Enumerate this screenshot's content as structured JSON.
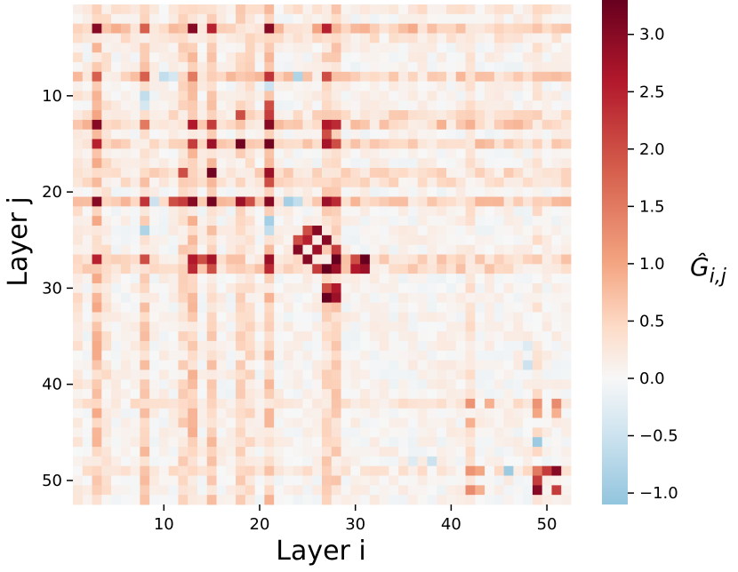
{
  "chart_data": {
    "type": "heatmap",
    "title": "",
    "xlabel": "Layer i",
    "ylabel": "Layer j",
    "colorbar_label": "Ĝ_{i,j}",
    "n": 52,
    "x_ticks": [
      10,
      20,
      30,
      40,
      50
    ],
    "y_ticks": [
      10,
      20,
      30,
      40,
      50
    ],
    "color_range": [
      -1.1,
      3.3
    ],
    "colorbar_ticks": [
      3.0,
      2.5,
      2.0,
      1.5,
      1.0,
      0.5,
      0.0,
      -0.5,
      -1.0
    ],
    "colorbar_tick_labels": [
      "3.0",
      "2.5",
      "2.0",
      "1.5",
      "1.0",
      "0.5",
      "0.0",
      "−0.5",
      "−1.0"
    ],
    "colormap": [
      "#67001f",
      "#b2182b",
      "#d6604d",
      "#f4a582",
      "#fddbc7",
      "#f7f7f7",
      "#d1e5f0",
      "#92c5de"
    ],
    "cells": [
      [
        3,
        3,
        3.0
      ],
      [
        3,
        13,
        3.0
      ],
      [
        13,
        3,
        3.0
      ],
      [
        13,
        13,
        2.6
      ],
      [
        3,
        15,
        2.5
      ],
      [
        15,
        3,
        2.5
      ],
      [
        3,
        21,
        3.0
      ],
      [
        21,
        3,
        3.0
      ],
      [
        3,
        27,
        2.5
      ],
      [
        27,
        3,
        2.5
      ],
      [
        3,
        8,
        1.8
      ],
      [
        8,
        3,
        1.8
      ],
      [
        15,
        15,
        2.8
      ],
      [
        15,
        18,
        3.2
      ],
      [
        18,
        15,
        3.2
      ],
      [
        15,
        13,
        2.2
      ],
      [
        13,
        15,
        2.2
      ],
      [
        21,
        21,
        3.0
      ],
      [
        21,
        13,
        3.0
      ],
      [
        13,
        21,
        3.0
      ],
      [
        21,
        15,
        3.2
      ],
      [
        15,
        21,
        3.2
      ],
      [
        21,
        18,
        2.8
      ],
      [
        18,
        21,
        2.8
      ],
      [
        21,
        19,
        2.0
      ],
      [
        19,
        21,
        2.0
      ],
      [
        21,
        11,
        2.0
      ],
      [
        11,
        21,
        2.0
      ],
      [
        21,
        12,
        2.2
      ],
      [
        12,
        21,
        2.2
      ],
      [
        21,
        27,
        2.8
      ],
      [
        27,
        21,
        2.8
      ],
      [
        21,
        28,
        2.4
      ],
      [
        28,
        21,
        2.4
      ],
      [
        13,
        27,
        2.6
      ],
      [
        27,
        13,
        2.6
      ],
      [
        15,
        27,
        2.7
      ],
      [
        27,
        15,
        2.7
      ],
      [
        8,
        21,
        2.3
      ],
      [
        21,
        8,
        2.3
      ],
      [
        8,
        27,
        2.0
      ],
      [
        27,
        8,
        2.0
      ],
      [
        8,
        8,
        1.8
      ],
      [
        8,
        13,
        1.5
      ],
      [
        13,
        8,
        1.5
      ],
      [
        21,
        23,
        -0.9
      ],
      [
        23,
        21,
        -0.9
      ],
      [
        21,
        24,
        -0.6
      ],
      [
        24,
        21,
        -0.6
      ],
      [
        8,
        10,
        -0.6
      ],
      [
        10,
        8,
        -0.6
      ],
      [
        8,
        11,
        -0.4
      ],
      [
        11,
        8,
        -0.4
      ],
      [
        8,
        24,
        -0.8
      ],
      [
        24,
        8,
        -0.8
      ],
      [
        9,
        21,
        -0.5
      ],
      [
        21,
        9,
        -0.5
      ],
      [
        25,
        25,
        2.5
      ],
      [
        26,
        24,
        3.0
      ],
      [
        24,
        26,
        3.0
      ],
      [
        25,
        27,
        3.0
      ],
      [
        27,
        25,
        3.0
      ],
      [
        26,
        26,
        2.8
      ],
      [
        28,
        27,
        3.3
      ],
      [
        27,
        28,
        3.3
      ],
      [
        28,
        28,
        2.8
      ],
      [
        26,
        28,
        2.2
      ],
      [
        28,
        26,
        2.2
      ],
      [
        24,
        25,
        2.0
      ],
      [
        25,
        24,
        2.0
      ],
      [
        31,
        27,
        3.3
      ],
      [
        27,
        31,
        3.3
      ],
      [
        30,
        28,
        2.6
      ],
      [
        28,
        30,
        2.6
      ],
      [
        31,
        28,
        2.8
      ],
      [
        28,
        31,
        2.8
      ],
      [
        27,
        14,
        2.0
      ],
      [
        14,
        27,
        2.0
      ],
      [
        13,
        28,
        2.4
      ],
      [
        28,
        13,
        2.4
      ],
      [
        15,
        28,
        2.0
      ],
      [
        28,
        15,
        2.0
      ],
      [
        27,
        13,
        2.6
      ],
      [
        30,
        27,
        2.0
      ],
      [
        27,
        30,
        2.0
      ],
      [
        12,
        18,
        2.0
      ],
      [
        18,
        12,
        2.0
      ],
      [
        49,
        49,
        1.5
      ],
      [
        49,
        51,
        3.0
      ],
      [
        51,
        49,
        3.0
      ],
      [
        50,
        49,
        2.2
      ],
      [
        49,
        50,
        2.2
      ],
      [
        51,
        51,
        2.2
      ],
      [
        49,
        46,
        -1.0
      ],
      [
        46,
        49,
        -1.0
      ],
      [
        49,
        43,
        1.0
      ],
      [
        43,
        49,
        1.0
      ],
      [
        42,
        42,
        1.2
      ],
      [
        42,
        44,
        0.9
      ],
      [
        44,
        42,
        0.9
      ],
      [
        42,
        49,
        1.2
      ],
      [
        49,
        42,
        1.2
      ],
      [
        38,
        48,
        -0.5
      ],
      [
        48,
        38,
        -0.5
      ],
      [
        36,
        48,
        -0.3
      ],
      [
        48,
        36,
        -0.3
      ],
      [
        51,
        42,
        1.3
      ],
      [
        42,
        51,
        1.3
      ],
      [
        51,
        43,
        0.9
      ],
      [
        43,
        51,
        0.9
      ]
    ]
  }
}
